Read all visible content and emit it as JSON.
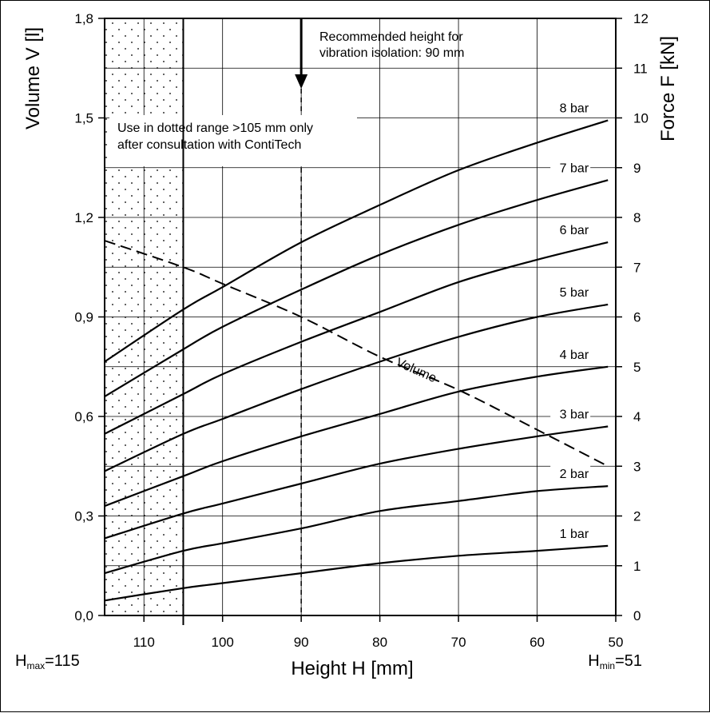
{
  "chart_data": {
    "type": "line",
    "xlabel": "Height H [mm]",
    "ylabel_left": "Volume V [l]",
    "ylabel_right": "Force F [kN]",
    "x_range": [
      115,
      50
    ],
    "x_ticks": [
      110,
      100,
      90,
      80,
      70,
      60,
      50
    ],
    "x_tick_labels": [
      "110",
      "100",
      "90",
      "80",
      "70",
      "60",
      "50"
    ],
    "y_left_range": [
      0,
      1.8
    ],
    "y_left_ticks": [
      0.0,
      0.3,
      0.6,
      0.9,
      1.2,
      1.5,
      1.8
    ],
    "y_left_tick_labels": [
      "0,0",
      "0,3",
      "0,6",
      "0,9",
      "1,2",
      "1,5",
      "1,8"
    ],
    "y_right_range": [
      0,
      12
    ],
    "y_right_ticks": [
      0,
      1,
      2,
      3,
      4,
      5,
      6,
      7,
      8,
      9,
      10,
      11,
      12
    ],
    "y_right_tick_labels": [
      "0",
      "1",
      "2",
      "3",
      "4",
      "5",
      "6",
      "7",
      "8",
      "9",
      "10",
      "11",
      "12"
    ],
    "grid": true,
    "hmax_label": {
      "main": "H",
      "sub": "max",
      "value": "=115"
    },
    "hmin_label": {
      "main": "H",
      "sub": "min",
      "value": "=51"
    },
    "dotted_range": [
      115,
      105
    ],
    "dotted_note": [
      "Use in dotted range >105 mm only",
      "after consultation with ContiTech"
    ],
    "recommended_height": 90,
    "recommended_note": [
      "Recommended height for",
      "vibration isolation: 90 mm"
    ],
    "force_series": [
      {
        "name": "8 bar",
        "axis": "right",
        "x": [
          115,
          105,
          100,
          90,
          80,
          70,
          60,
          51
        ],
        "y": [
          5.1,
          6.15,
          6.6,
          7.5,
          8.25,
          8.95,
          9.5,
          9.95
        ]
      },
      {
        "name": "7 bar",
        "axis": "right",
        "x": [
          115,
          105,
          100,
          90,
          80,
          70,
          60,
          51
        ],
        "y": [
          4.4,
          5.35,
          5.8,
          6.55,
          7.25,
          7.85,
          8.35,
          8.75
        ]
      },
      {
        "name": "6 bar",
        "axis": "right",
        "x": [
          115,
          105,
          100,
          90,
          80,
          70,
          60,
          51
        ],
        "y": [
          3.65,
          4.45,
          4.85,
          5.5,
          6.1,
          6.7,
          7.15,
          7.5
        ]
      },
      {
        "name": "5 bar",
        "axis": "right",
        "x": [
          115,
          105,
          100,
          90,
          80,
          70,
          60,
          51
        ],
        "y": [
          2.9,
          3.65,
          3.95,
          4.55,
          5.1,
          5.6,
          6.0,
          6.25
        ]
      },
      {
        "name": "4 bar",
        "axis": "right",
        "x": [
          115,
          105,
          100,
          90,
          80,
          70,
          60,
          51
        ],
        "y": [
          2.2,
          2.8,
          3.1,
          3.6,
          4.05,
          4.5,
          4.8,
          5.0
        ]
      },
      {
        "name": "3 bar",
        "axis": "right",
        "x": [
          115,
          105,
          100,
          90,
          80,
          70,
          60,
          51
        ],
        "y": [
          1.55,
          2.05,
          2.25,
          2.65,
          3.05,
          3.35,
          3.6,
          3.8
        ]
      },
      {
        "name": "2 bar",
        "axis": "right",
        "x": [
          115,
          105,
          100,
          90,
          80,
          70,
          60,
          51
        ],
        "y": [
          0.85,
          1.3,
          1.45,
          1.75,
          2.1,
          2.3,
          2.5,
          2.6
        ]
      },
      {
        "name": "1 bar",
        "axis": "right",
        "x": [
          115,
          105,
          100,
          90,
          80,
          70,
          60,
          51
        ],
        "y": [
          0.3,
          0.55,
          0.65,
          0.85,
          1.05,
          1.2,
          1.3,
          1.4
        ]
      }
    ],
    "volume_series": {
      "name": "Volume",
      "axis": "left",
      "style": "dashed",
      "x": [
        115,
        105,
        100,
        90,
        80,
        70,
        60,
        51
      ],
      "y": [
        1.13,
        1.05,
        1.0,
        0.9,
        0.78,
        0.68,
        0.56,
        0.45
      ]
    }
  }
}
